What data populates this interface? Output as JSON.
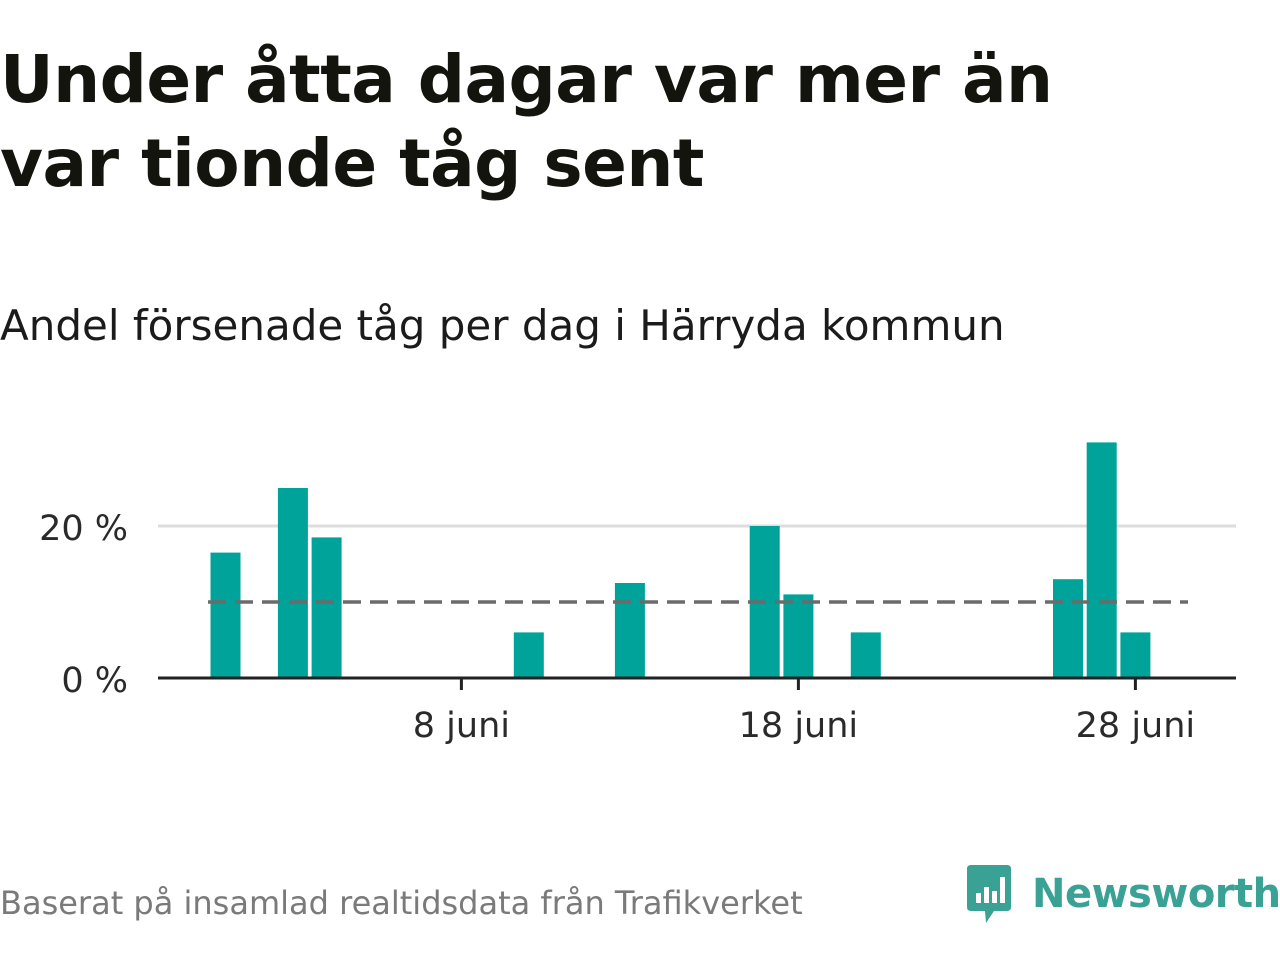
{
  "title": "Under åtta dagar var mer än var tionde tåg sent",
  "subtitle": "Andel försenade tåg per dag i Härryda kommun",
  "footer": "Baserat på insamlad realtidsdata från Trafikverket",
  "brand": {
    "name": "Newsworthy",
    "icon": "newsworthy-logo-icon"
  },
  "colors": {
    "bar": "#00a39a",
    "reference_line": "#6b6b6b",
    "grid": "#dddddd",
    "axis": "#222222"
  },
  "chart_data": {
    "type": "bar",
    "title": "Andel försenade tåg per dag i Härryda kommun",
    "xlabel": "",
    "ylabel": "",
    "x_unit": "day of June",
    "categories": [
      1,
      2,
      3,
      4,
      5,
      6,
      7,
      8,
      9,
      10,
      11,
      12,
      13,
      14,
      15,
      16,
      17,
      18,
      19,
      20,
      21,
      22,
      23,
      24,
      25,
      26,
      27,
      28,
      29,
      30
    ],
    "values": [
      16.5,
      0,
      25,
      18.5,
      0,
      0,
      0,
      0,
      0,
      6,
      0,
      0,
      12.5,
      0,
      0,
      0,
      20,
      11,
      0,
      6,
      0,
      0,
      0,
      0,
      0,
      13,
      31,
      6,
      0,
      0
    ],
    "x_ticks": [
      8,
      18,
      28
    ],
    "x_tick_labels": [
      "8 juni",
      "18 juni",
      "28 juni"
    ],
    "y_ticks": [
      0,
      20
    ],
    "y_tick_labels": [
      "0 %",
      "20 %"
    ],
    "ylim": [
      0,
      32
    ],
    "reference_line": 10,
    "grid": true
  }
}
